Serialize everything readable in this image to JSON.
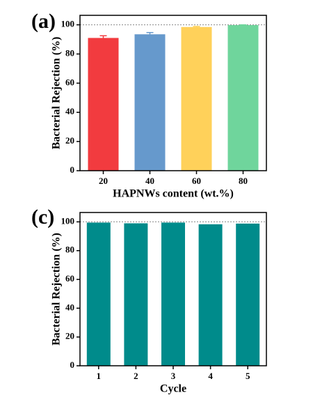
{
  "chart_data": [
    {
      "panel": "(a)",
      "type": "bar",
      "categories": [
        "20",
        "40",
        "60",
        "80"
      ],
      "values": [
        91,
        93.5,
        98.5,
        99.8
      ],
      "errors": [
        1.5,
        1.2,
        0.4,
        0.2
      ],
      "colors": [
        "#f23b3f",
        "#6699cc",
        "#ffd15a",
        "#6fd59c"
      ],
      "xlabel": "HAPNWs content (wt.%)",
      "ylabel": "Bacterial Rejection (%)",
      "ylim": [
        0,
        100
      ],
      "yticks": [
        0,
        20,
        40,
        60,
        80,
        100
      ],
      "reference_line": 100,
      "grid": false
    },
    {
      "panel": "(c)",
      "type": "bar",
      "categories": [
        "1",
        "2",
        "3",
        "4",
        "5"
      ],
      "values": [
        99.5,
        99,
        99.5,
        98.3,
        98.8
      ],
      "colors": [
        "#008b8b",
        "#008b8b",
        "#008b8b",
        "#008b8b",
        "#008b8b"
      ],
      "xlabel": "Cycle",
      "ylabel": "Bacterial Rejection (%)",
      "ylim": [
        0,
        100
      ],
      "yticks": [
        0,
        20,
        40,
        60,
        80,
        100
      ],
      "reference_line": 100,
      "grid": false
    }
  ]
}
